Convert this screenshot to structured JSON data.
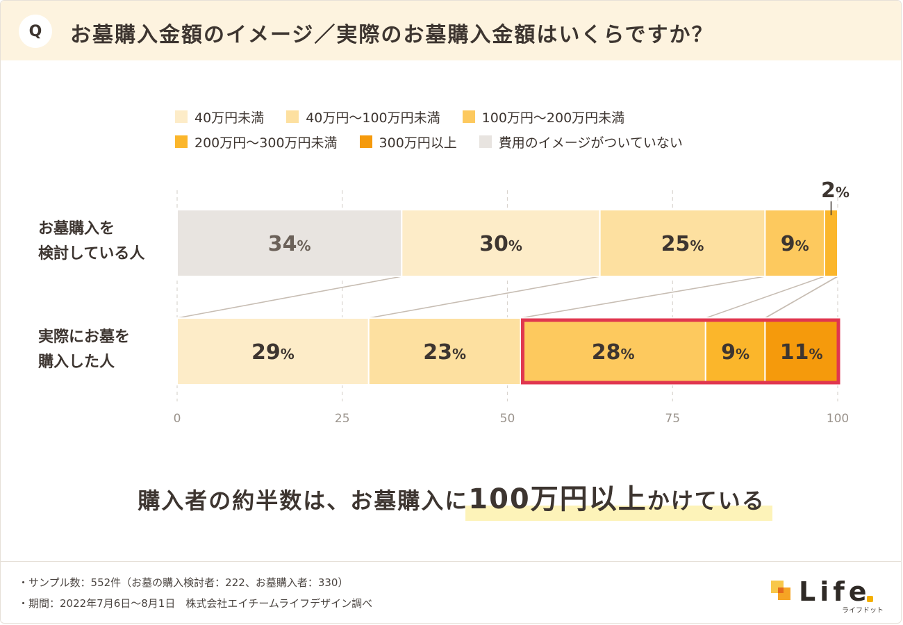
{
  "header": {
    "badge": "Q",
    "title": "お墓購入金額のイメージ／実際のお墓購入金額はいくらですか？"
  },
  "legend": [
    {
      "label": "40万円未満",
      "color": "#fdecc8"
    },
    {
      "label": "40万円〜100万円未満",
      "color": "#fde0a0"
    },
    {
      "label": "100万円〜200万円未満",
      "color": "#fdc95e"
    },
    {
      "label": "200万円〜300万円未満",
      "color": "#fbb62b"
    },
    {
      "label": "300万円以上",
      "color": "#f59a0c"
    },
    {
      "label": "費用のイメージがついていない",
      "color": "#e8e4e0"
    }
  ],
  "chart_data": {
    "type": "bar",
    "orientation": "horizontal-stacked-100",
    "categories": [
      "お墓購入を検討している人",
      "実際にお墓を購入した人"
    ],
    "row_labels": [
      [
        "お墓購入を",
        "検討している人"
      ],
      [
        "実際にお墓を",
        "購入した人"
      ]
    ],
    "series": [
      {
        "name": "費用のイメージがついていない",
        "values": [
          34,
          0
        ]
      },
      {
        "name": "40万円未満",
        "values": [
          30,
          29
        ]
      },
      {
        "name": "40万円〜100万円未満",
        "values": [
          25,
          23
        ]
      },
      {
        "name": "100万円〜200万円未満",
        "values": [
          9,
          28
        ]
      },
      {
        "name": "200万円〜300万円未満",
        "values": [
          2,
          9
        ]
      },
      {
        "name": "300万円以上",
        "values": [
          0,
          11
        ]
      }
    ],
    "percent_suffix": "%",
    "xlim": [
      0,
      100
    ],
    "xticks": [
      "0",
      "25",
      "50",
      "75",
      "100"
    ],
    "grid": true,
    "highlight": {
      "row": "実際にお墓を購入した人",
      "from_series": "100万円〜200万円未満",
      "to_series": "300万円以上",
      "color": "#e0364f"
    }
  },
  "headline": {
    "before": "購入者の約半数は、お墓購入に",
    "emphasis": "100万円以上",
    "after": "かけている"
  },
  "notes": [
    "・サンプル数：552件（お墓の購入検討者：222、お墓購入者：330）",
    "・期間：2022年7月6日〜8月1日　株式会社エイチームライフデザイン調べ"
  ],
  "logo": {
    "word": "Life",
    "sub": "ライフドット",
    "colors": [
      "#f8c74a",
      "#f59a0c",
      "#e56a1c"
    ]
  }
}
